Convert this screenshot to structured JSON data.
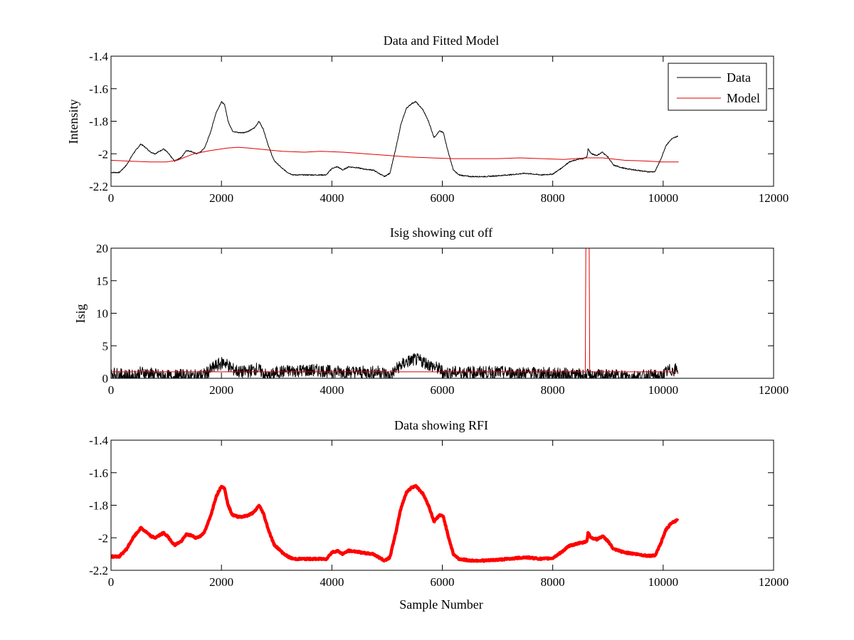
{
  "chart_data": [
    {
      "type": "line",
      "title": "Data and Fitted Model",
      "xlabel": "",
      "ylabel": "Intensity",
      "xlim": [
        0,
        12000
      ],
      "ylim": [
        -2.2,
        -1.4
      ],
      "xticks": [
        0,
        2000,
        4000,
        6000,
        8000,
        10000,
        12000
      ],
      "yticks": [
        -2.2,
        -2,
        -1.8,
        -1.6,
        -1.4
      ],
      "ytick_labels": [
        "-2.2",
        "-2",
        "-1.8",
        "-1.6",
        "-1.4"
      ],
      "legend_position": "top-right",
      "series": [
        {
          "name": "Data",
          "color": "#000000",
          "noise": 0.004,
          "x": [
            0,
            150,
            280,
            400,
            540,
            620,
            720,
            800,
            950,
            1020,
            1150,
            1280,
            1360,
            1450,
            1540,
            1620,
            1700,
            1800,
            1900,
            2000,
            2060,
            2120,
            2200,
            2300,
            2400,
            2500,
            2600,
            2680,
            2760,
            2850,
            2950,
            3100,
            3200,
            3300,
            3500,
            3700,
            3900,
            4000,
            4100,
            4200,
            4300,
            4450,
            4600,
            4750,
            4850,
            4950,
            5050,
            5150,
            5250,
            5350,
            5450,
            5520,
            5650,
            5750,
            5850,
            5950,
            6020,
            6100,
            6200,
            6300,
            6500,
            6800,
            7000,
            7200,
            7500,
            7800,
            8000,
            8150,
            8300,
            8450,
            8550,
            8620,
            8640,
            8700,
            8800,
            8900,
            9000,
            9100,
            9200,
            9300,
            9500,
            9700,
            9850,
            9950,
            10050,
            10150,
            10270
          ],
          "y": [
            -2.115,
            -2.115,
            -2.07,
            -2.0,
            -1.94,
            -1.96,
            -1.99,
            -2.0,
            -1.97,
            -1.99,
            -2.045,
            -2.02,
            -1.98,
            -1.985,
            -2.0,
            -1.99,
            -1.96,
            -1.87,
            -1.75,
            -1.68,
            -1.7,
            -1.8,
            -1.86,
            -1.87,
            -1.87,
            -1.86,
            -1.84,
            -1.8,
            -1.85,
            -1.95,
            -2.04,
            -2.09,
            -2.115,
            -2.13,
            -2.13,
            -2.13,
            -2.13,
            -2.09,
            -2.08,
            -2.1,
            -2.08,
            -2.085,
            -2.095,
            -2.1,
            -2.12,
            -2.14,
            -2.12,
            -1.98,
            -1.82,
            -1.72,
            -1.69,
            -1.68,
            -1.73,
            -1.8,
            -1.9,
            -1.86,
            -1.87,
            -1.98,
            -2.1,
            -2.13,
            -2.14,
            -2.14,
            -2.135,
            -2.13,
            -2.12,
            -2.13,
            -2.125,
            -2.09,
            -2.05,
            -2.035,
            -2.03,
            -2.02,
            -1.97,
            -2.0,
            -2.01,
            -1.99,
            -2.02,
            -2.07,
            -2.08,
            -2.09,
            -2.1,
            -2.11,
            -2.11,
            -2.04,
            -1.95,
            -1.91,
            -1.89
          ]
        },
        {
          "name": "Model",
          "color": "#e10000",
          "noise": 0,
          "x": [
            0,
            300,
            700,
            1000,
            1200,
            1500,
            1800,
            2100,
            2300,
            2500,
            2800,
            3100,
            3500,
            3800,
            4200,
            4600,
            5000,
            5400,
            5800,
            6200,
            6600,
            7000,
            7400,
            7800,
            8200,
            8600,
            8900,
            9300,
            9700,
            10000,
            10280
          ],
          "y": [
            -2.04,
            -2.045,
            -2.05,
            -2.05,
            -2.04,
            -2.0,
            -1.98,
            -1.965,
            -1.96,
            -1.965,
            -1.975,
            -1.985,
            -1.99,
            -1.985,
            -1.99,
            -2.0,
            -2.01,
            -2.02,
            -2.025,
            -2.03,
            -2.03,
            -2.03,
            -2.025,
            -2.03,
            -2.035,
            -2.025,
            -2.025,
            -2.04,
            -2.045,
            -2.05,
            -2.05
          ]
        }
      ]
    },
    {
      "type": "line",
      "title": "Isig showing cut off",
      "xlabel": "",
      "ylabel": "Isig",
      "xlim": [
        0,
        12000
      ],
      "ylim": [
        0,
        20
      ],
      "xticks": [
        0,
        2000,
        4000,
        6000,
        8000,
        10000,
        12000
      ],
      "yticks": [
        0,
        5,
        10,
        15,
        20
      ],
      "ytick_labels": [
        "0",
        "5",
        "10",
        "15",
        "20"
      ],
      "series": [
        {
          "color": "#000000",
          "noise": 0.05,
          "x": [
            0,
            200,
            400,
            550,
            700,
            900,
            1100,
            1300,
            1500,
            1700,
            1900,
            2050,
            2200,
            2350,
            2500,
            2650,
            2750,
            2850,
            3000,
            3200,
            3500,
            3800,
            4000,
            4300,
            4600,
            4900,
            5050,
            5200,
            5350,
            5500,
            5650,
            5800,
            5950,
            6050,
            6200,
            6500,
            7000,
            7500,
            8000,
            8300,
            8500,
            8700,
            9000,
            9500,
            9800,
            9950,
            10100,
            10270
          ],
          "y": [
            0.8,
            0.5,
            0.3,
            0.9,
            0.7,
            0.4,
            0.2,
            0.5,
            0.3,
            0.6,
            1.9,
            2.5,
            1.4,
            0.9,
            1.1,
            1.5,
            0.8,
            0.2,
            0.9,
            1.1,
            1.2,
            1.2,
            1.0,
            1.0,
            0.9,
            1.0,
            0.3,
            1.7,
            2.5,
            2.9,
            2.6,
            1.9,
            1.4,
            0.8,
            0.9,
            0.9,
            0.9,
            0.8,
            0.7,
            0.6,
            0.5,
            0.4,
            0.4,
            0.3,
            0.4,
            0.2,
            1.2,
            1.4
          ]
        },
        {
          "color": "#e10000",
          "noise": 0,
          "x": [
            0,
            8580,
            8590,
            8600,
            8610,
            8630,
            8640,
            8660,
            8670,
            8680,
            10270
          ],
          "y": [
            1.0,
            1.0,
            1.0,
            20,
            20,
            20,
            20,
            20,
            1.0,
            1.0,
            1.0
          ]
        }
      ]
    },
    {
      "type": "line",
      "title": "Data showing RFI",
      "xlabel": "Sample Number",
      "ylabel": "",
      "xlim": [
        0,
        12000
      ],
      "ylim": [
        -2.2,
        -1.4
      ],
      "xticks": [
        0,
        2000,
        4000,
        6000,
        8000,
        10000,
        12000
      ],
      "yticks": [
        -2.2,
        -2,
        -1.8,
        -1.6,
        -1.4
      ],
      "ytick_labels": [
        "-2.2",
        "-2",
        "-1.8",
        "-1.6",
        "-1.4"
      ],
      "series": [
        {
          "color": "#ff0000",
          "noise": 0.006,
          "bold": true,
          "x": [
            0,
            150,
            280,
            400,
            540,
            620,
            720,
            800,
            950,
            1020,
            1150,
            1280,
            1360,
            1450,
            1540,
            1620,
            1700,
            1800,
            1900,
            2000,
            2060,
            2120,
            2200,
            2300,
            2400,
            2500,
            2600,
            2680,
            2760,
            2850,
            2950,
            3100,
            3200,
            3300,
            3500,
            3700,
            3900,
            4000,
            4100,
            4200,
            4300,
            4450,
            4600,
            4750,
            4850,
            4950,
            5050,
            5150,
            5250,
            5350,
            5450,
            5520,
            5650,
            5750,
            5850,
            5950,
            6020,
            6100,
            6200,
            6300,
            6500,
            6800,
            7000,
            7200,
            7500,
            7800,
            8000,
            8150,
            8300,
            8450,
            8550,
            8620,
            8640,
            8700,
            8800,
            8900,
            9000,
            9100,
            9200,
            9300,
            9500,
            9700,
            9850,
            9950,
            10050,
            10150,
            10270
          ],
          "y": [
            -2.115,
            -2.115,
            -2.07,
            -2.0,
            -1.94,
            -1.96,
            -1.99,
            -2.0,
            -1.97,
            -1.99,
            -2.045,
            -2.02,
            -1.98,
            -1.985,
            -2.0,
            -1.99,
            -1.96,
            -1.87,
            -1.75,
            -1.68,
            -1.7,
            -1.8,
            -1.86,
            -1.87,
            -1.87,
            -1.86,
            -1.84,
            -1.8,
            -1.85,
            -1.95,
            -2.04,
            -2.09,
            -2.115,
            -2.13,
            -2.13,
            -2.13,
            -2.13,
            -2.09,
            -2.08,
            -2.1,
            -2.08,
            -2.085,
            -2.095,
            -2.1,
            -2.12,
            -2.14,
            -2.12,
            -1.98,
            -1.82,
            -1.72,
            -1.69,
            -1.68,
            -1.73,
            -1.8,
            -1.9,
            -1.86,
            -1.87,
            -1.98,
            -2.1,
            -2.13,
            -2.14,
            -2.14,
            -2.135,
            -2.13,
            -2.12,
            -2.13,
            -2.125,
            -2.09,
            -2.05,
            -2.035,
            -2.03,
            -2.02,
            -1.97,
            -2.0,
            -2.01,
            -1.99,
            -2.02,
            -2.07,
            -2.08,
            -2.09,
            -2.1,
            -2.11,
            -2.11,
            -2.04,
            -1.95,
            -1.91,
            -1.89
          ]
        }
      ]
    }
  ]
}
